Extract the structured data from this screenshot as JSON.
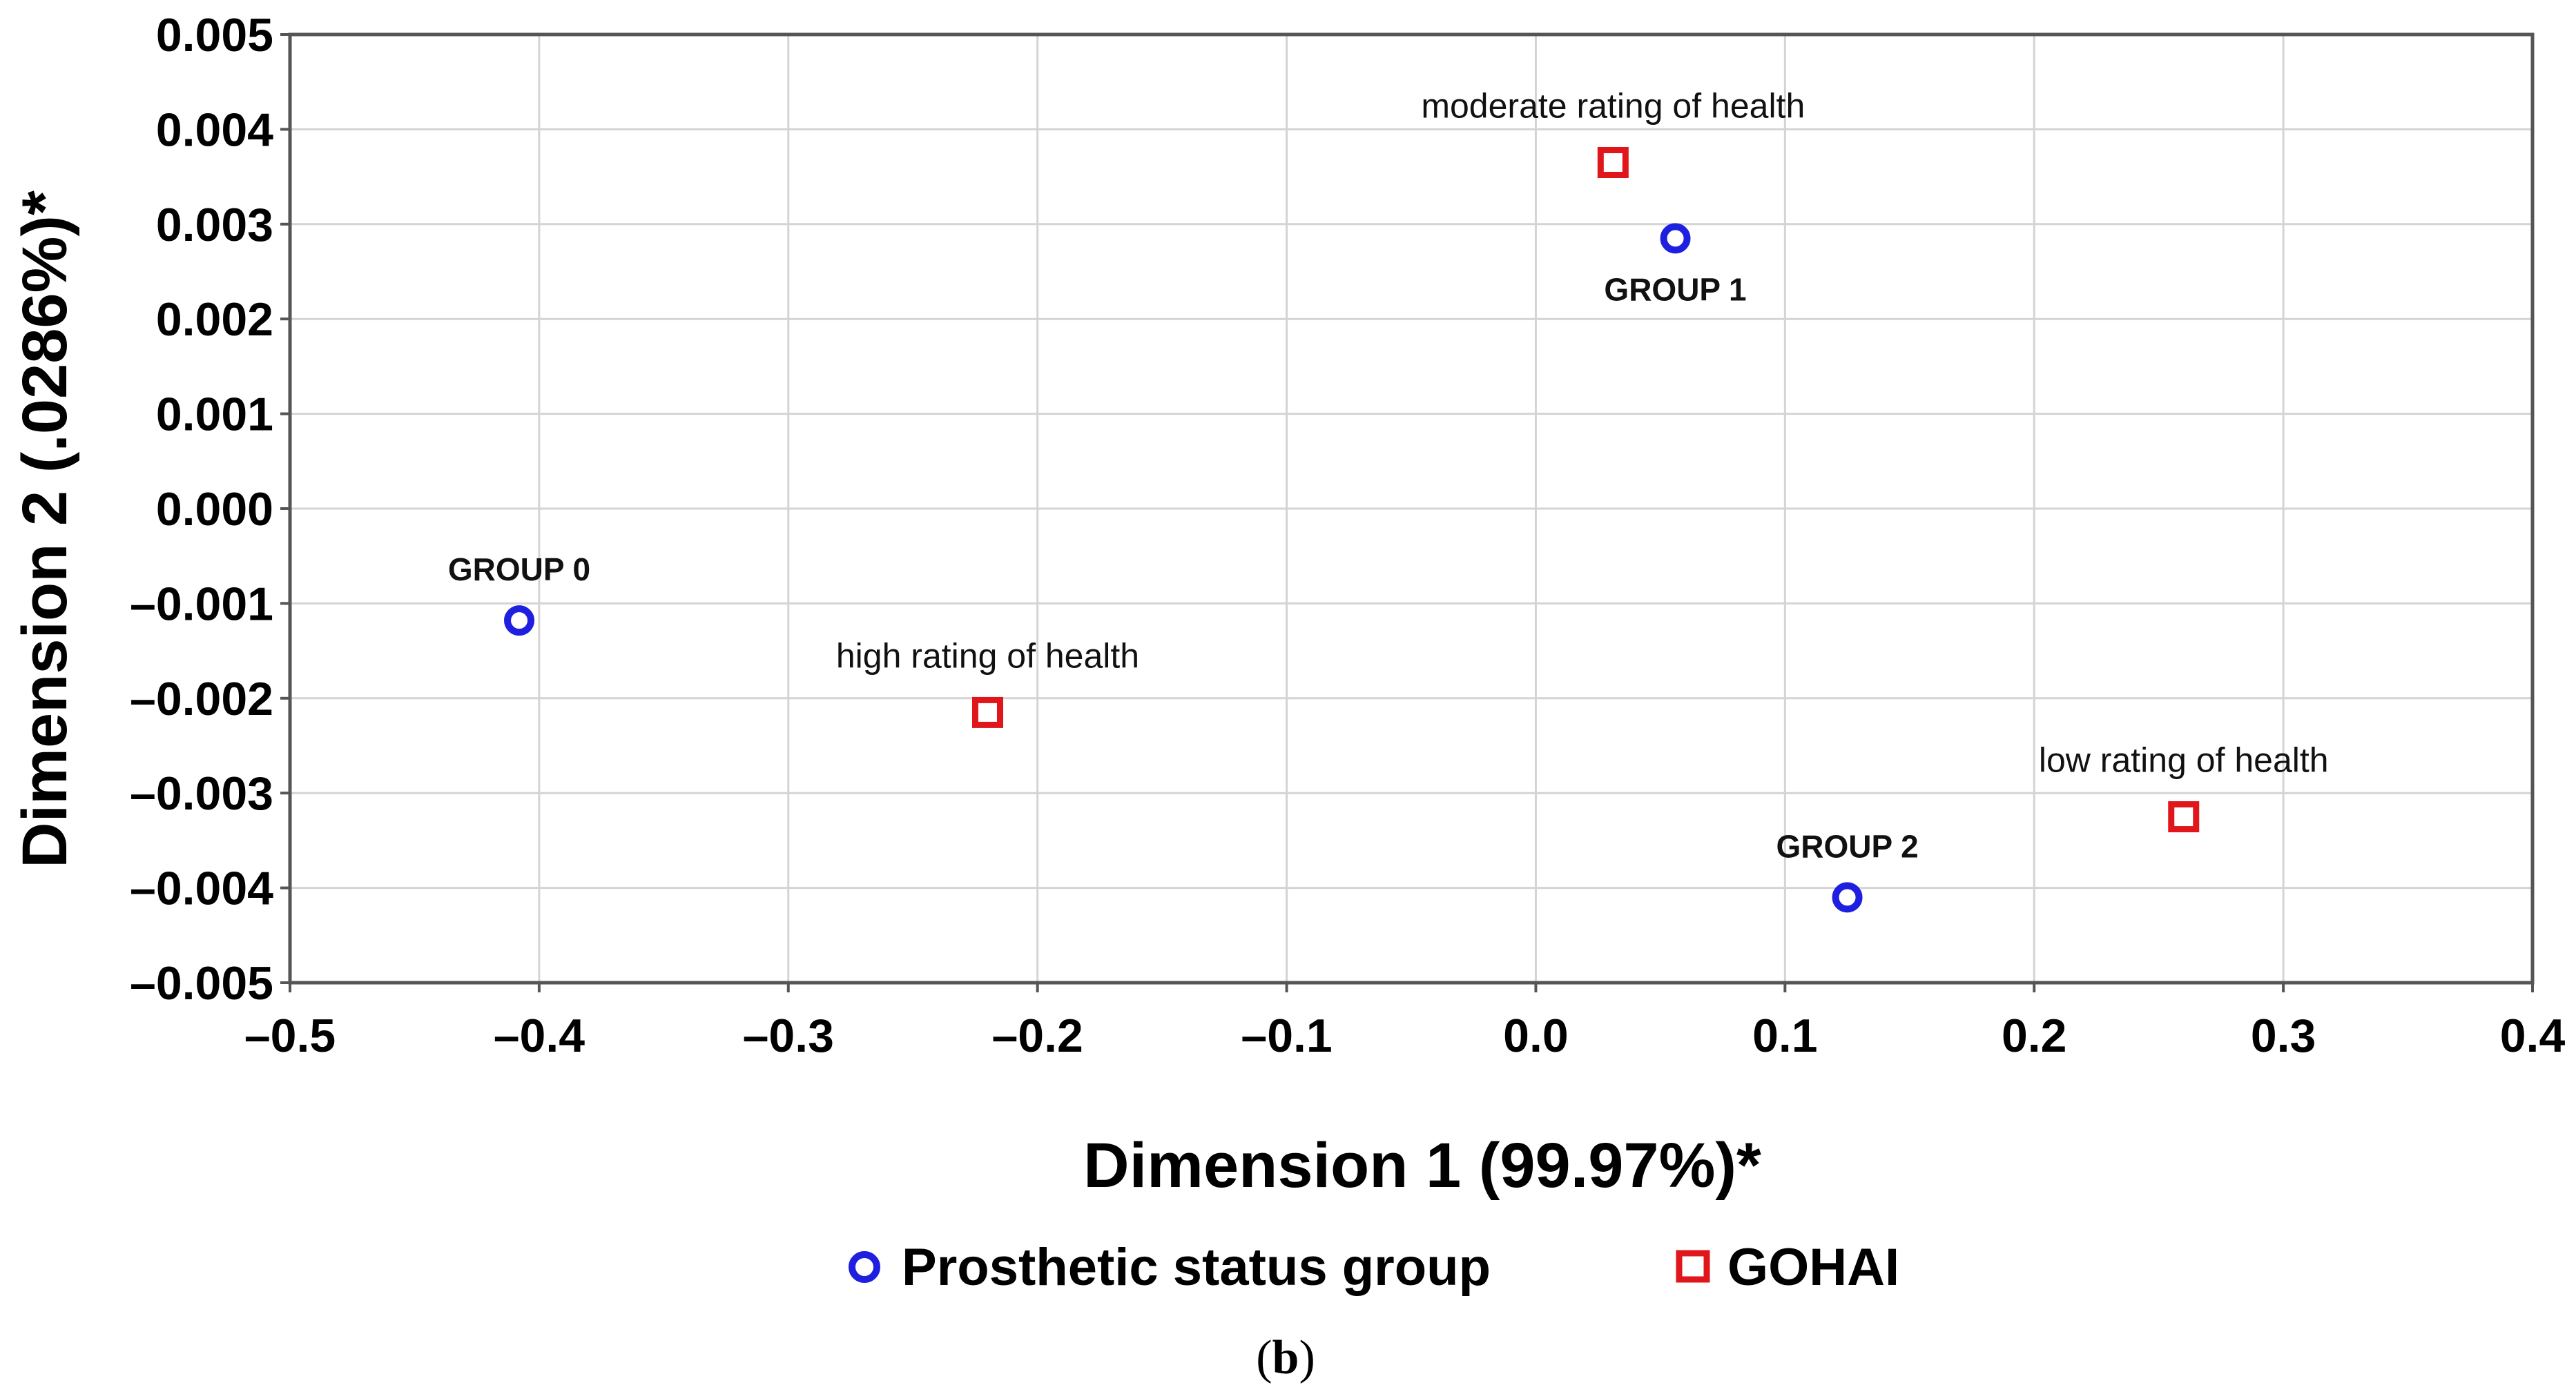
{
  "chart_data": {
    "type": "scatter",
    "title": "",
    "xlabel": "Dimension 1 (99.97%)*",
    "ylabel": "Dimension 2 (.0286%)*",
    "xlim": [
      -0.5,
      0.4
    ],
    "ylim": [
      -0.005,
      0.005
    ],
    "xticks": [
      -0.5,
      -0.4,
      -0.3,
      -0.2,
      -0.1,
      0.0,
      0.1,
      0.2,
      0.3,
      0.4
    ],
    "xtick_labels": [
      "–0.5",
      "–0.4",
      "–0.3",
      "–0.2",
      "–0.1",
      "0.0",
      "0.1",
      "0.2",
      "0.3",
      "0.4"
    ],
    "yticks": [
      0.005,
      0.004,
      0.003,
      0.002,
      0.001,
      0.0,
      -0.001,
      -0.002,
      -0.003,
      -0.004,
      -0.005
    ],
    "ytick_labels": [
      "0.005",
      "0.004",
      "0.003",
      "0.002",
      "0.001",
      "0.000",
      "–0.001",
      "–0.002",
      "–0.003",
      "–0.004",
      "–0.005"
    ],
    "grid": true,
    "legend_position": "bottom",
    "series": [
      {
        "name": "Prosthetic status group",
        "marker": "circle",
        "color": "#1f1fe0",
        "points": [
          {
            "label": "GROUP 0",
            "x": -0.408,
            "y": -0.00118,
            "label_style": "bold",
            "label_position": "above"
          },
          {
            "label": "GROUP 1",
            "x": 0.056,
            "y": 0.00285,
            "label_style": "bold",
            "label_position": "below"
          },
          {
            "label": "GROUP 2",
            "x": 0.125,
            "y": -0.0041,
            "label_style": "bold",
            "label_position": "above"
          }
        ]
      },
      {
        "name": "GOHAI",
        "marker": "square",
        "color": "#e0161a",
        "points": [
          {
            "label": "moderate rating of health",
            "x": 0.031,
            "y": 0.00365,
            "label_style": "plain",
            "label_position": "above"
          },
          {
            "label": "high rating of health",
            "x": -0.22,
            "y": -0.00215,
            "label_style": "plain",
            "label_position": "above"
          },
          {
            "label": "low rating of health",
            "x": 0.26,
            "y": -0.00325,
            "label_style": "plain",
            "label_position": "above"
          }
        ]
      }
    ],
    "caption": "(b)",
    "caption_bold": "b"
  }
}
